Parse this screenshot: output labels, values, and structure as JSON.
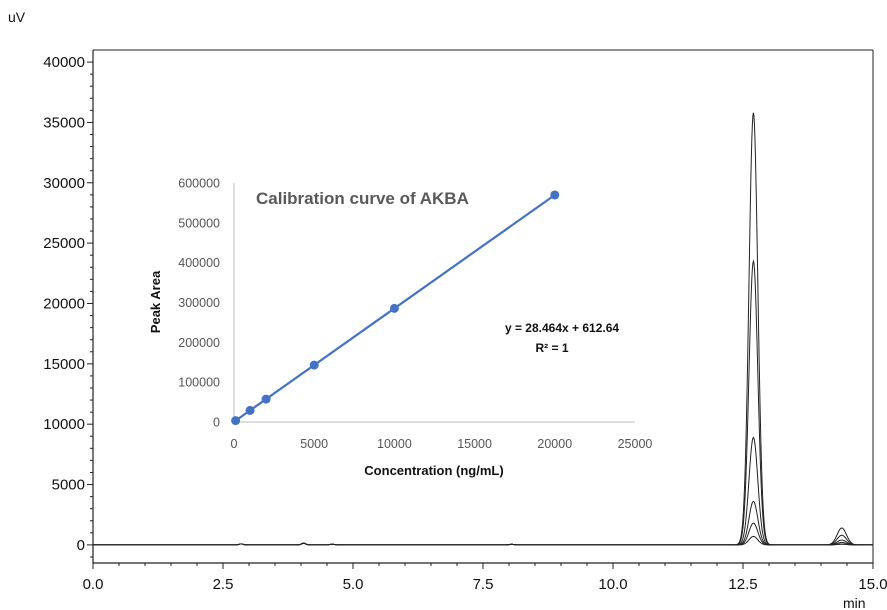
{
  "chart_data": [
    {
      "type": "line",
      "title": "",
      "xlabel": "min",
      "ylabel": "uV",
      "xlim": [
        0.0,
        15.0
      ],
      "ylim": [
        -1500,
        41000
      ],
      "x_ticks": [
        "0.0",
        "2.5",
        "5.0",
        "7.5",
        "10.0",
        "12.5",
        "15.0"
      ],
      "y_ticks": [
        "0",
        "5000",
        "10000",
        "15000",
        "20000",
        "25000",
        "30000",
        "35000",
        "40000"
      ],
      "peaks": [
        {
          "retention_time": 12.7,
          "heights": [
            35800,
            23500,
            8900,
            3600,
            1800,
            700
          ]
        },
        {
          "retention_time": 14.4,
          "heights": [
            1400,
            800,
            400,
            200
          ]
        }
      ],
      "grid": false,
      "legend": "none"
    },
    {
      "type": "scatter",
      "title": "Calibration curve of AKBA",
      "xlabel": "Concentration (ng/mL)",
      "ylabel": "Peak Area",
      "xlim": [
        0,
        25000
      ],
      "ylim": [
        0,
        600000
      ],
      "x_ticks": [
        "0",
        "5000",
        "10000",
        "15000",
        "20000",
        "25000"
      ],
      "y_ticks": [
        "0",
        "100000",
        "200000",
        "300000",
        "400000",
        "500000",
        "600000"
      ],
      "x": [
        100,
        1000,
        2000,
        5000,
        10000,
        20000
      ],
      "y": [
        3459,
        29077,
        57541,
        142933,
        285253,
        569893
      ],
      "trendline": {
        "slope": 28.464,
        "intercept": 612.64
      },
      "annotations": [
        "y = 28.464x + 612.64",
        "R² = 1"
      ],
      "series_color": "#4472c4",
      "grid": false
    }
  ]
}
